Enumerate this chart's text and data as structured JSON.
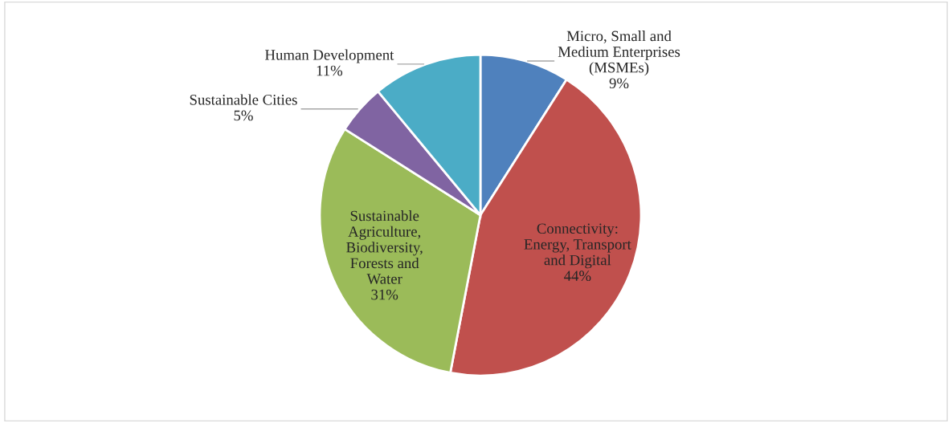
{
  "chart_data": {
    "type": "pie",
    "categories": [
      "Micro, Small and\nMedium Enterprises\n(MSMEs)",
      "Connectivity:\nEnergy, Transport\nand Digital",
      "Sustainable\nAgriculture,\nBiodiversity,\nForests and\nWater",
      "Sustainable Cities",
      "Human Development"
    ],
    "values": [
      9,
      44,
      31,
      5,
      11
    ],
    "value_labels": [
      "9%",
      "44%",
      "31%",
      "5%",
      "11%"
    ],
    "colors": [
      "#4f81bd",
      "#c0504d",
      "#9bbb59",
      "#8064a2",
      "#4bacc6"
    ],
    "legend": false
  }
}
